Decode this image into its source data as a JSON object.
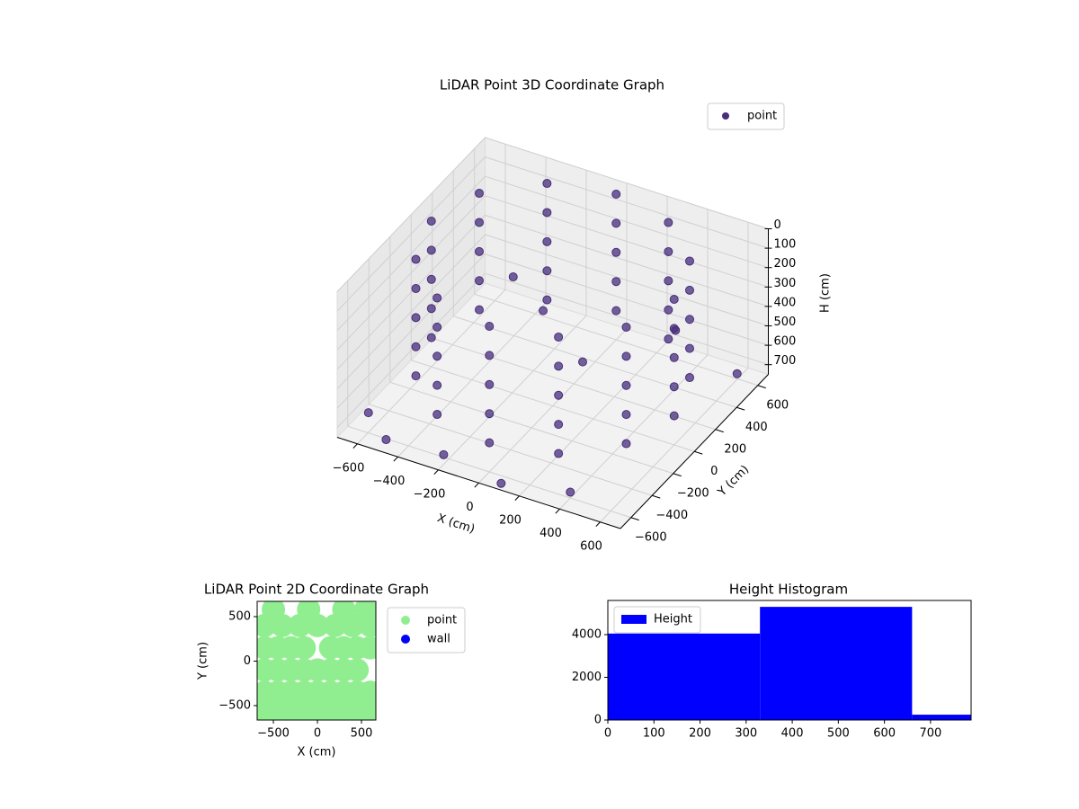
{
  "chart_data": [
    {
      "type": "scatter3d",
      "title": "LiDAR Point 3D Coordinate Graph",
      "xlabel": "X (cm)",
      "ylabel": "Y (cm)",
      "zlabel": "H (cm)",
      "xlim": [
        -700,
        700
      ],
      "ylim": [
        -700,
        700
      ],
      "zlim": [
        750,
        0
      ],
      "xticks": [
        {
          "value": -600,
          "label": "−600"
        },
        {
          "value": -400,
          "label": "−400"
        },
        {
          "value": -200,
          "label": "−200"
        },
        0,
        200,
        400,
        600
      ],
      "yticks": [
        {
          "value": -600,
          "label": "−600"
        },
        {
          "value": -400,
          "label": "−400"
        },
        {
          "value": -200,
          "label": "−200"
        },
        0,
        200,
        400,
        600
      ],
      "zticks": [
        0,
        100,
        200,
        300,
        400,
        500,
        600,
        700
      ],
      "grid": true,
      "legend": "upper right",
      "series": [
        {
          "name": "point",
          "color": "#472d7b",
          "x": [
            600,
            520,
            300,
            0,
            -300,
            -520,
            -600,
            -520,
            -300,
            0,
            300,
            520,
            600,
            520,
            300,
            0,
            -300,
            -520,
            -600,
            -520,
            -300,
            0,
            300,
            520,
            600,
            520,
            300,
            0,
            -300,
            -520,
            -600,
            -520,
            -300,
            0,
            300,
            520,
            600,
            520,
            300,
            0,
            -300,
            -520,
            -600,
            -520,
            -300,
            0,
            300,
            520,
            600,
            520,
            300,
            0,
            -300,
            -520,
            -600,
            -520,
            -300,
            0,
            300,
            520,
            -650,
            -500,
            -200,
            100,
            400,
            650,
            -100,
            200,
            -300,
            450
          ],
          "y": [
            0,
            300,
            520,
            600,
            520,
            300,
            0,
            -300,
            -520,
            -600,
            -520,
            -300,
            0,
            300,
            520,
            600,
            520,
            300,
            0,
            -300,
            -520,
            -600,
            -520,
            -300,
            0,
            300,
            520,
            600,
            520,
            300,
            0,
            -300,
            -520,
            -600,
            -520,
            -300,
            0,
            300,
            520,
            600,
            520,
            300,
            0,
            -300,
            -520,
            -600,
            -520,
            -300,
            0,
            300,
            520,
            600,
            520,
            300,
            0,
            -300,
            -520,
            -600,
            -520,
            -300,
            -500,
            -620,
            -650,
            -680,
            -600,
            500,
            100,
            -100,
            200,
            300
          ],
          "z": [
            0,
            0,
            0,
            0,
            0,
            0,
            0,
            0,
            0,
            0,
            0,
            0,
            150,
            150,
            150,
            150,
            150,
            150,
            150,
            150,
            150,
            150,
            150,
            150,
            300,
            300,
            300,
            300,
            300,
            300,
            300,
            300,
            300,
            300,
            300,
            300,
            450,
            450,
            450,
            450,
            450,
            450,
            450,
            450,
            450,
            450,
            450,
            450,
            600,
            600,
            600,
            600,
            600,
            600,
            600,
            600,
            600,
            600,
            600,
            600,
            720,
            740,
            700,
            730,
            720,
            650,
            350,
            400,
            300,
            380
          ]
        }
      ]
    },
    {
      "type": "scatter",
      "title": "LiDAR Point 2D Coordinate Graph",
      "xlabel": "X (cm)",
      "ylabel": "Y (cm)",
      "xlim": [
        -684,
        663
      ],
      "ylim": [
        -662,
        672
      ],
      "xticks": [
        {
          "value": -500,
          "label": "−500"
        },
        0,
        500
      ],
      "yticks": [
        {
          "value": -500,
          "label": "−500"
        },
        0,
        500
      ],
      "legend": "outside right",
      "series": [
        {
          "name": "point",
          "color": "#90ee90",
          "x": [
            -600,
            -450,
            -300,
            -150,
            0,
            150,
            300,
            450,
            600,
            -600,
            -450,
            -300,
            -150,
            0,
            150,
            300,
            450,
            600,
            -600,
            -450,
            -300,
            -150,
            0,
            150,
            300,
            450,
            -600,
            -450,
            -300,
            -150,
            150,
            300,
            450,
            600,
            -600,
            -400,
            -200,
            0,
            200,
            400,
            600,
            -500,
            -100,
            300,
            550
          ],
          "y": [
            -550,
            -550,
            -550,
            -550,
            -550,
            -550,
            -550,
            -550,
            -550,
            -350,
            -350,
            -350,
            -350,
            -350,
            -350,
            -350,
            -350,
            -350,
            -100,
            -100,
            -100,
            -100,
            -100,
            -100,
            -100,
            -100,
            150,
            150,
            150,
            150,
            150,
            150,
            150,
            150,
            400,
            400,
            400,
            400,
            400,
            400,
            400,
            580,
            580,
            580,
            580
          ]
        },
        {
          "name": "wall",
          "color": "#0000ff",
          "x": [],
          "y": []
        }
      ]
    },
    {
      "type": "histogram",
      "title": "Height Histogram",
      "legend": "upper left",
      "xlim": [
        0,
        788
      ],
      "ylim": [
        0,
        5600
      ],
      "xticks": [
        0,
        100,
        200,
        300,
        400,
        500,
        600,
        700
      ],
      "yticks": [
        0,
        2000,
        4000
      ],
      "series": [
        {
          "name": "Height",
          "color": "#0000ff",
          "bins": [
            0,
            330,
            660,
            788
          ],
          "values": [
            4050,
            5300,
            250
          ]
        }
      ]
    }
  ]
}
